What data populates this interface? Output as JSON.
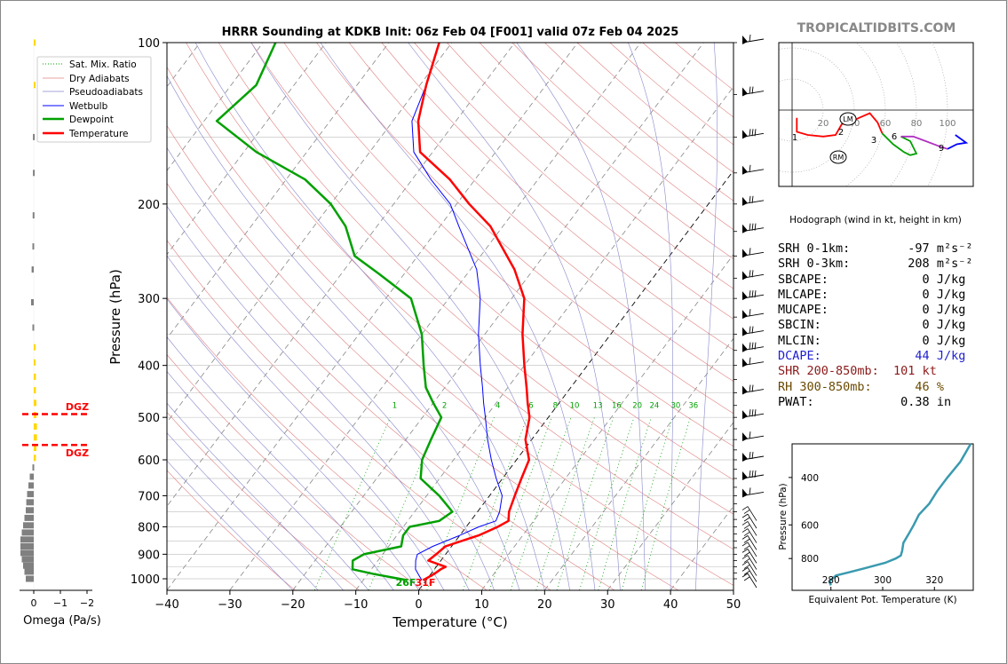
{
  "brand": "TROPICALTIDBITS.COM",
  "colors": {
    "temperature": "#ff0000",
    "dewpoint": "#00a000",
    "wetbulb": "#0000ff",
    "dry_adiabat": "#e08080",
    "moist_adiabat": "#8888cc",
    "mixing_ratio": "#00a000",
    "dgz": "#ff0000",
    "omega_up": "#ffd700",
    "omega_down": "#808080",
    "theta_e": "#3a9ab0",
    "brand": "#888888",
    "dcape": "#2020d0",
    "shr": "#8b1a1a",
    "rh": "#6b4a00"
  },
  "chart_data": [
    {
      "type": "line",
      "title": "HRRR Sounding at KDKB Init: 06z Feb 04 [F001] valid 07z Feb 04 2025",
      "xlabel": "Temperature (°C)",
      "ylabel": "Pressure (hPa)",
      "log_y": true,
      "skew_t": true,
      "xlim": [
        -40,
        50
      ],
      "ylim": [
        1050,
        100
      ],
      "x_ticks": [
        -40,
        -30,
        -20,
        -10,
        0,
        10,
        20,
        30,
        40,
        50
      ],
      "y_ticks": [
        100,
        200,
        300,
        400,
        500,
        600,
        700,
        800,
        900,
        1000
      ],
      "legend_position": "upper-left",
      "legend": [
        "Sat. Mix. Ratio",
        "Dry Adiabats",
        "Pseudoadiabats",
        "Wetbulb",
        "Dewpoint",
        "Temperature"
      ],
      "mixing_ratio_labels": [
        "1",
        "2",
        "4",
        "6",
        "8",
        "10",
        "13",
        "16",
        "20",
        "24",
        "30",
        "36"
      ],
      "surface_labels": {
        "dewpoint": "26F",
        "temperature": "31F"
      },
      "series": [
        {
          "name": "Temperature",
          "points": [
            [
              -0.5,
              1006
            ],
            [
              0.5,
              980
            ],
            [
              1.0,
              960
            ],
            [
              1.5,
              950
            ],
            [
              -2,
              925
            ],
            [
              -1.5,
              900
            ],
            [
              -1,
              870
            ],
            [
              3,
              830
            ],
            [
              5,
              800
            ],
            [
              6,
              780
            ],
            [
              5,
              750
            ],
            [
              4,
              700
            ],
            [
              3,
              650
            ],
            [
              2,
              600
            ],
            [
              -1,
              550
            ],
            [
              -3,
              500
            ],
            [
              -5,
              470
            ],
            [
              -7,
              440
            ],
            [
              -10,
              400
            ],
            [
              -14,
              350
            ],
            [
              -18,
              300
            ],
            [
              -23,
              265
            ],
            [
              -32,
              220
            ],
            [
              -38,
              200
            ],
            [
              -44,
              180
            ],
            [
              -52,
              160
            ],
            [
              -56,
              140
            ],
            [
              -59,
              120
            ],
            [
              -62,
              100
            ]
          ]
        },
        {
          "name": "Wetbulb",
          "points": [
            [
              -0.7,
              1006
            ],
            [
              -2,
              980
            ],
            [
              -3,
              960
            ],
            [
              -4,
              925
            ],
            [
              -4.5,
              900
            ],
            [
              -3,
              870
            ],
            [
              0,
              830
            ],
            [
              2,
              800
            ],
            [
              4,
              780
            ],
            [
              3.5,
              750
            ],
            [
              2,
              700
            ],
            [
              -1,
              650
            ],
            [
              -4,
              600
            ],
            [
              -7,
              550
            ],
            [
              -10,
              500
            ],
            [
              -12,
              470
            ],
            [
              -14,
              440
            ],
            [
              -17,
              400
            ],
            [
              -21,
              350
            ],
            [
              -25,
              300
            ],
            [
              -29,
              265
            ],
            [
              -37,
              220
            ],
            [
              -41,
              200
            ],
            [
              -47,
              180
            ],
            [
              -53,
              160
            ],
            [
              -57,
              140
            ],
            [
              -59,
              120
            ],
            [
              -62,
              100
            ]
          ]
        },
        {
          "name": "Dewpoint",
          "points": [
            [
              -3,
              1006
            ],
            [
              -9,
              980
            ],
            [
              -13,
              960
            ],
            [
              -14,
              925
            ],
            [
              -13,
              900
            ],
            [
              -8,
              870
            ],
            [
              -9,
              830
            ],
            [
              -9,
              800
            ],
            [
              -5,
              780
            ],
            [
              -4,
              750
            ],
            [
              -8,
              700
            ],
            [
              -13,
              650
            ],
            [
              -15,
              600
            ],
            [
              -16,
              550
            ],
            [
              -17,
              500
            ],
            [
              -20,
              470
            ],
            [
              -23,
              440
            ],
            [
              -26,
              400
            ],
            [
              -30,
              350
            ],
            [
              -36,
              300
            ],
            [
              -44,
              270
            ],
            [
              -50,
              250
            ],
            [
              -55,
              220
            ],
            [
              -60,
              200
            ],
            [
              -67,
              180
            ],
            [
              -78,
              160
            ],
            [
              -88,
              140
            ],
            [
              -86,
              120
            ],
            [
              -88,
              100
            ]
          ]
        }
      ]
    },
    {
      "type": "scatter",
      "title": "Hodograph (wind in kt, height in km)",
      "rings": [
        "20",
        "40",
        "60",
        "80",
        "100"
      ],
      "height_labels": [
        "1",
        "2",
        "3",
        "6",
        "9"
      ],
      "markers": [
        "LM",
        "RM"
      ]
    },
    {
      "type": "line",
      "xlabel": "Equivalent Pot. Temperature (K)",
      "ylabel": "Pressure (hPa)",
      "xlim": [
        265,
        335
      ],
      "ylim": [
        1050,
        300
      ],
      "x_ticks": [
        "280",
        "300",
        "320"
      ],
      "y_ticks": [
        "400",
        "600",
        "800"
      ],
      "series": [
        {
          "name": "Theta-E",
          "points": [
            [
              280,
              1006
            ],
            [
              279.5,
              980
            ],
            [
              280,
              960
            ],
            [
              282,
              925
            ],
            [
              287,
              900
            ],
            [
              293,
              870
            ],
            [
              301,
              830
            ],
            [
              305,
              800
            ],
            [
              307,
              780
            ],
            [
              307.5,
              750
            ],
            [
              308,
              700
            ],
            [
              310,
              650
            ],
            [
              312,
              600
            ],
            [
              314,
              550
            ],
            [
              318,
              500
            ],
            [
              321,
              450
            ],
            [
              325,
              400
            ],
            [
              330,
              350
            ],
            [
              334,
              300
            ]
          ]
        }
      ]
    },
    {
      "type": "bar",
      "xlabel": "Omega (Pa/s)",
      "x_ticks": [
        "0",
        "−1",
        "−2"
      ],
      "dgz_label": "DGZ",
      "bars": [
        {
          "p": 1000,
          "v": 0.3
        },
        {
          "p": 970,
          "v": 0.35
        },
        {
          "p": 945,
          "v": 0.4
        },
        {
          "p": 920,
          "v": 0.45
        },
        {
          "p": 895,
          "v": 0.5
        },
        {
          "p": 870,
          "v": 0.5
        },
        {
          "p": 845,
          "v": 0.5
        },
        {
          "p": 820,
          "v": 0.45
        },
        {
          "p": 795,
          "v": 0.4
        },
        {
          "p": 770,
          "v": 0.35
        },
        {
          "p": 745,
          "v": 0.3
        },
        {
          "p": 720,
          "v": 0.28
        },
        {
          "p": 695,
          "v": 0.25
        },
        {
          "p": 670,
          "v": 0.2
        },
        {
          "p": 645,
          "v": 0.15
        },
        {
          "p": 620,
          "v": 0.05
        },
        {
          "p": 595,
          "v": -0.08
        },
        {
          "p": 570,
          "v": -0.1
        },
        {
          "p": 545,
          "v": -0.12
        },
        {
          "p": 520,
          "v": -0.12
        },
        {
          "p": 495,
          "v": -0.1
        },
        {
          "p": 470,
          "v": -0.1
        },
        {
          "p": 445,
          "v": -0.08
        },
        {
          "p": 420,
          "v": -0.08
        },
        {
          "p": 395,
          "v": -0.05
        },
        {
          "p": 370,
          "v": -0.04
        },
        {
          "p": 340,
          "v": 0.05
        },
        {
          "p": 305,
          "v": 0.1
        },
        {
          "p": 265,
          "v": 0.08
        },
        {
          "p": 240,
          "v": 0.05
        },
        {
          "p": 210,
          "v": 0.04
        },
        {
          "p": 175,
          "v": 0.03
        },
        {
          "p": 150,
          "v": 0.03
        },
        {
          "p": 120,
          "v": -0.02
        },
        {
          "p": 100,
          "v": -0.02
        }
      ]
    }
  ],
  "parameters": [
    {
      "label": "SRH 0-1km:",
      "value": "-97",
      "unit": "m²s⁻²",
      "color": "#000000"
    },
    {
      "label": "SRH 0-3km:",
      "value": "208",
      "unit": "m²s⁻²",
      "color": "#000000"
    },
    {
      "label": "SBCAPE:",
      "value": "0",
      "unit": "J/kg",
      "color": "#000000"
    },
    {
      "label": "MLCAPE:",
      "value": "0",
      "unit": "J/kg",
      "color": "#000000"
    },
    {
      "label": "MUCAPE:",
      "value": "0",
      "unit": "J/kg",
      "color": "#000000"
    },
    {
      "label": "SBCIN:",
      "value": "0",
      "unit": "J/kg",
      "color": "#000000"
    },
    {
      "label": "MLCIN:",
      "value": "0",
      "unit": "J/kg",
      "color": "#000000"
    },
    {
      "label": "DCAPE:",
      "value": "44",
      "unit": "J/kg",
      "color": "#2020d0"
    },
    {
      "label": "SHR 200-850mb:",
      "value": "101",
      "unit": "kt",
      "color": "#8b1a1a"
    },
    {
      "label": "RH 300-850mb:",
      "value": "46",
      "unit": "%",
      "color": "#6b4a00"
    },
    {
      "label": "PWAT:",
      "value": "0.38",
      "unit": "in",
      "color": "#000000"
    }
  ]
}
